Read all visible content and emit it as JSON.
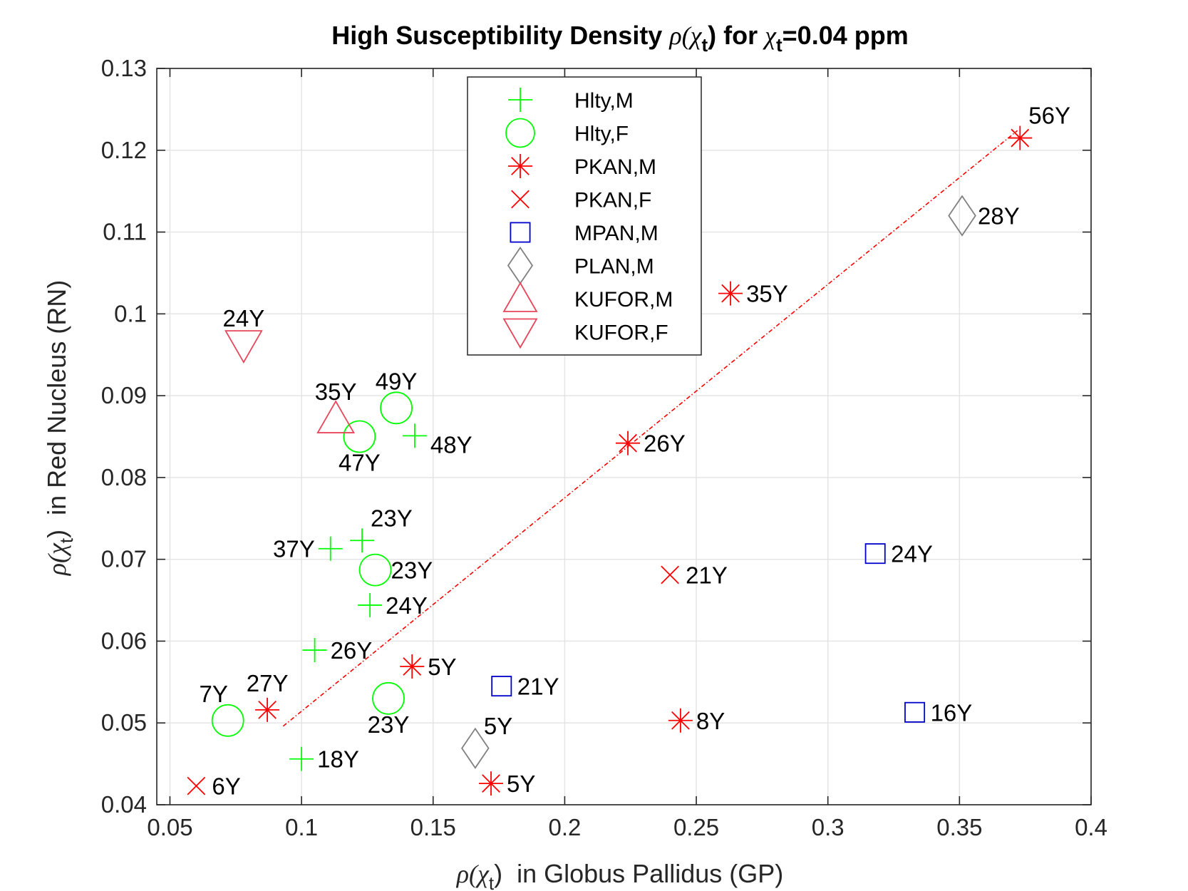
{
  "chart_data": {
    "type": "scatter",
    "title": {
      "prefix": "High Susceptibility Density ",
      "rho": "ρ(",
      "chi": "χ",
      "sub": "t",
      "close": ")",
      "middle": " for ",
      "suffix": "=0.04 ppm"
    },
    "xlabel": {
      "rho": "ρ(",
      "chi": "χ",
      "sub": "t",
      "close": ")",
      "text": "  in Globus Pallidus (GP)"
    },
    "ylabel": {
      "rho": "ρ(",
      "chi": "χ",
      "sub": "t",
      "close": ")",
      "text": "  in Red Nucleus (RN)"
    },
    "xlim": [
      0.045,
      0.4
    ],
    "ylim": [
      0.04,
      0.13
    ],
    "xticks": [
      0.05,
      0.1,
      0.15,
      0.2,
      0.25,
      0.3,
      0.35,
      0.4
    ],
    "xtick_labels": [
      "0.05",
      "0.1",
      "0.15",
      "0.2",
      "0.25",
      "0.3",
      "0.35",
      "0.4"
    ],
    "yticks": [
      0.04,
      0.05,
      0.06,
      0.07,
      0.08,
      0.09,
      0.1,
      0.11,
      0.12,
      0.13
    ],
    "ytick_labels": [
      "0.04",
      "0.05",
      "0.06",
      "0.07",
      "0.08",
      "0.09",
      "0.1",
      "0.11",
      "0.12",
      "0.13"
    ],
    "grid": true,
    "legend_position": "top-center",
    "series": [
      {
        "name": "Hlty,M",
        "marker": "plus",
        "color": "#00ff00",
        "points": [
          {
            "x": 0.143,
            "y": 0.0851,
            "label": "48Y",
            "anchor": "below-right"
          },
          {
            "x": 0.111,
            "y": 0.0713,
            "label": "37Y",
            "anchor": "left"
          },
          {
            "x": 0.123,
            "y": 0.0723,
            "label": "23Y",
            "anchor": "above-right"
          },
          {
            "x": 0.126,
            "y": 0.0644,
            "label": "24Y",
            "anchor": "right"
          },
          {
            "x": 0.105,
            "y": 0.0589,
            "label": "26Y",
            "anchor": "right"
          },
          {
            "x": 0.1,
            "y": 0.0456,
            "label": "18Y",
            "anchor": "right"
          }
        ]
      },
      {
        "name": "Hlty,F",
        "marker": "circle",
        "color": "#00ff00",
        "points": [
          {
            "x": 0.136,
            "y": 0.0885,
            "label": "49Y",
            "anchor": "above"
          },
          {
            "x": 0.122,
            "y": 0.085,
            "label": "47Y",
            "anchor": "below"
          },
          {
            "x": 0.128,
            "y": 0.0687,
            "label": "23Y",
            "anchor": "right"
          },
          {
            "x": 0.072,
            "y": 0.0503,
            "label": "7Y",
            "anchor": "above-left"
          },
          {
            "x": 0.133,
            "y": 0.053,
            "label": "23Y",
            "anchor": "below"
          }
        ]
      },
      {
        "name": "PKAN,M",
        "marker": "asterisk",
        "color": "#ff0000",
        "points": [
          {
            "x": 0.373,
            "y": 0.1215,
            "label": "56Y",
            "anchor": "above-right"
          },
          {
            "x": 0.263,
            "y": 0.1025,
            "label": "35Y",
            "anchor": "right"
          },
          {
            "x": 0.224,
            "y": 0.0842,
            "label": "26Y",
            "anchor": "right"
          },
          {
            "x": 0.142,
            "y": 0.0569,
            "label": "5Y",
            "anchor": "right"
          },
          {
            "x": 0.087,
            "y": 0.0516,
            "label": "27Y",
            "anchor": "above"
          },
          {
            "x": 0.244,
            "y": 0.0503,
            "label": "8Y",
            "anchor": "right"
          },
          {
            "x": 0.172,
            "y": 0.0426,
            "label": "5Y",
            "anchor": "right"
          }
        ]
      },
      {
        "name": "PKAN,F",
        "marker": "cross",
        "color": "#ff0000",
        "points": [
          {
            "x": 0.24,
            "y": 0.0681,
            "label": "21Y",
            "anchor": "right"
          },
          {
            "x": 0.06,
            "y": 0.0423,
            "label": "6Y",
            "anchor": "right"
          }
        ]
      },
      {
        "name": "MPAN,M",
        "marker": "square",
        "color": "#0000cc",
        "points": [
          {
            "x": 0.318,
            "y": 0.0707,
            "label": "24Y",
            "anchor": "right"
          },
          {
            "x": 0.176,
            "y": 0.0545,
            "label": "21Y",
            "anchor": "right"
          },
          {
            "x": 0.333,
            "y": 0.0513,
            "label": "16Y",
            "anchor": "right"
          }
        ]
      },
      {
        "name": "PLAN,M",
        "marker": "diamond",
        "color": "#808080",
        "points": [
          {
            "x": 0.351,
            "y": 0.112,
            "label": "28Y",
            "anchor": "right"
          },
          {
            "x": 0.166,
            "y": 0.0469,
            "label": "5Y",
            "anchor": "above-right"
          }
        ]
      },
      {
        "name": "KUFOR,M",
        "marker": "triangle-up",
        "color": "#e8465a",
        "points": [
          {
            "x": 0.113,
            "y": 0.0872,
            "label": "35Y",
            "anchor": "above"
          }
        ]
      },
      {
        "name": "KUFOR,F",
        "marker": "triangle-down",
        "color": "#e8465a",
        "points": [
          {
            "x": 0.078,
            "y": 0.0962,
            "label": "24Y",
            "anchor": "above"
          }
        ]
      }
    ],
    "fit_line": {
      "x": [
        0.093,
        0.372
      ],
      "y": [
        0.0496,
        0.1224
      ],
      "color": "#ff0000",
      "style": "dashdot"
    }
  }
}
